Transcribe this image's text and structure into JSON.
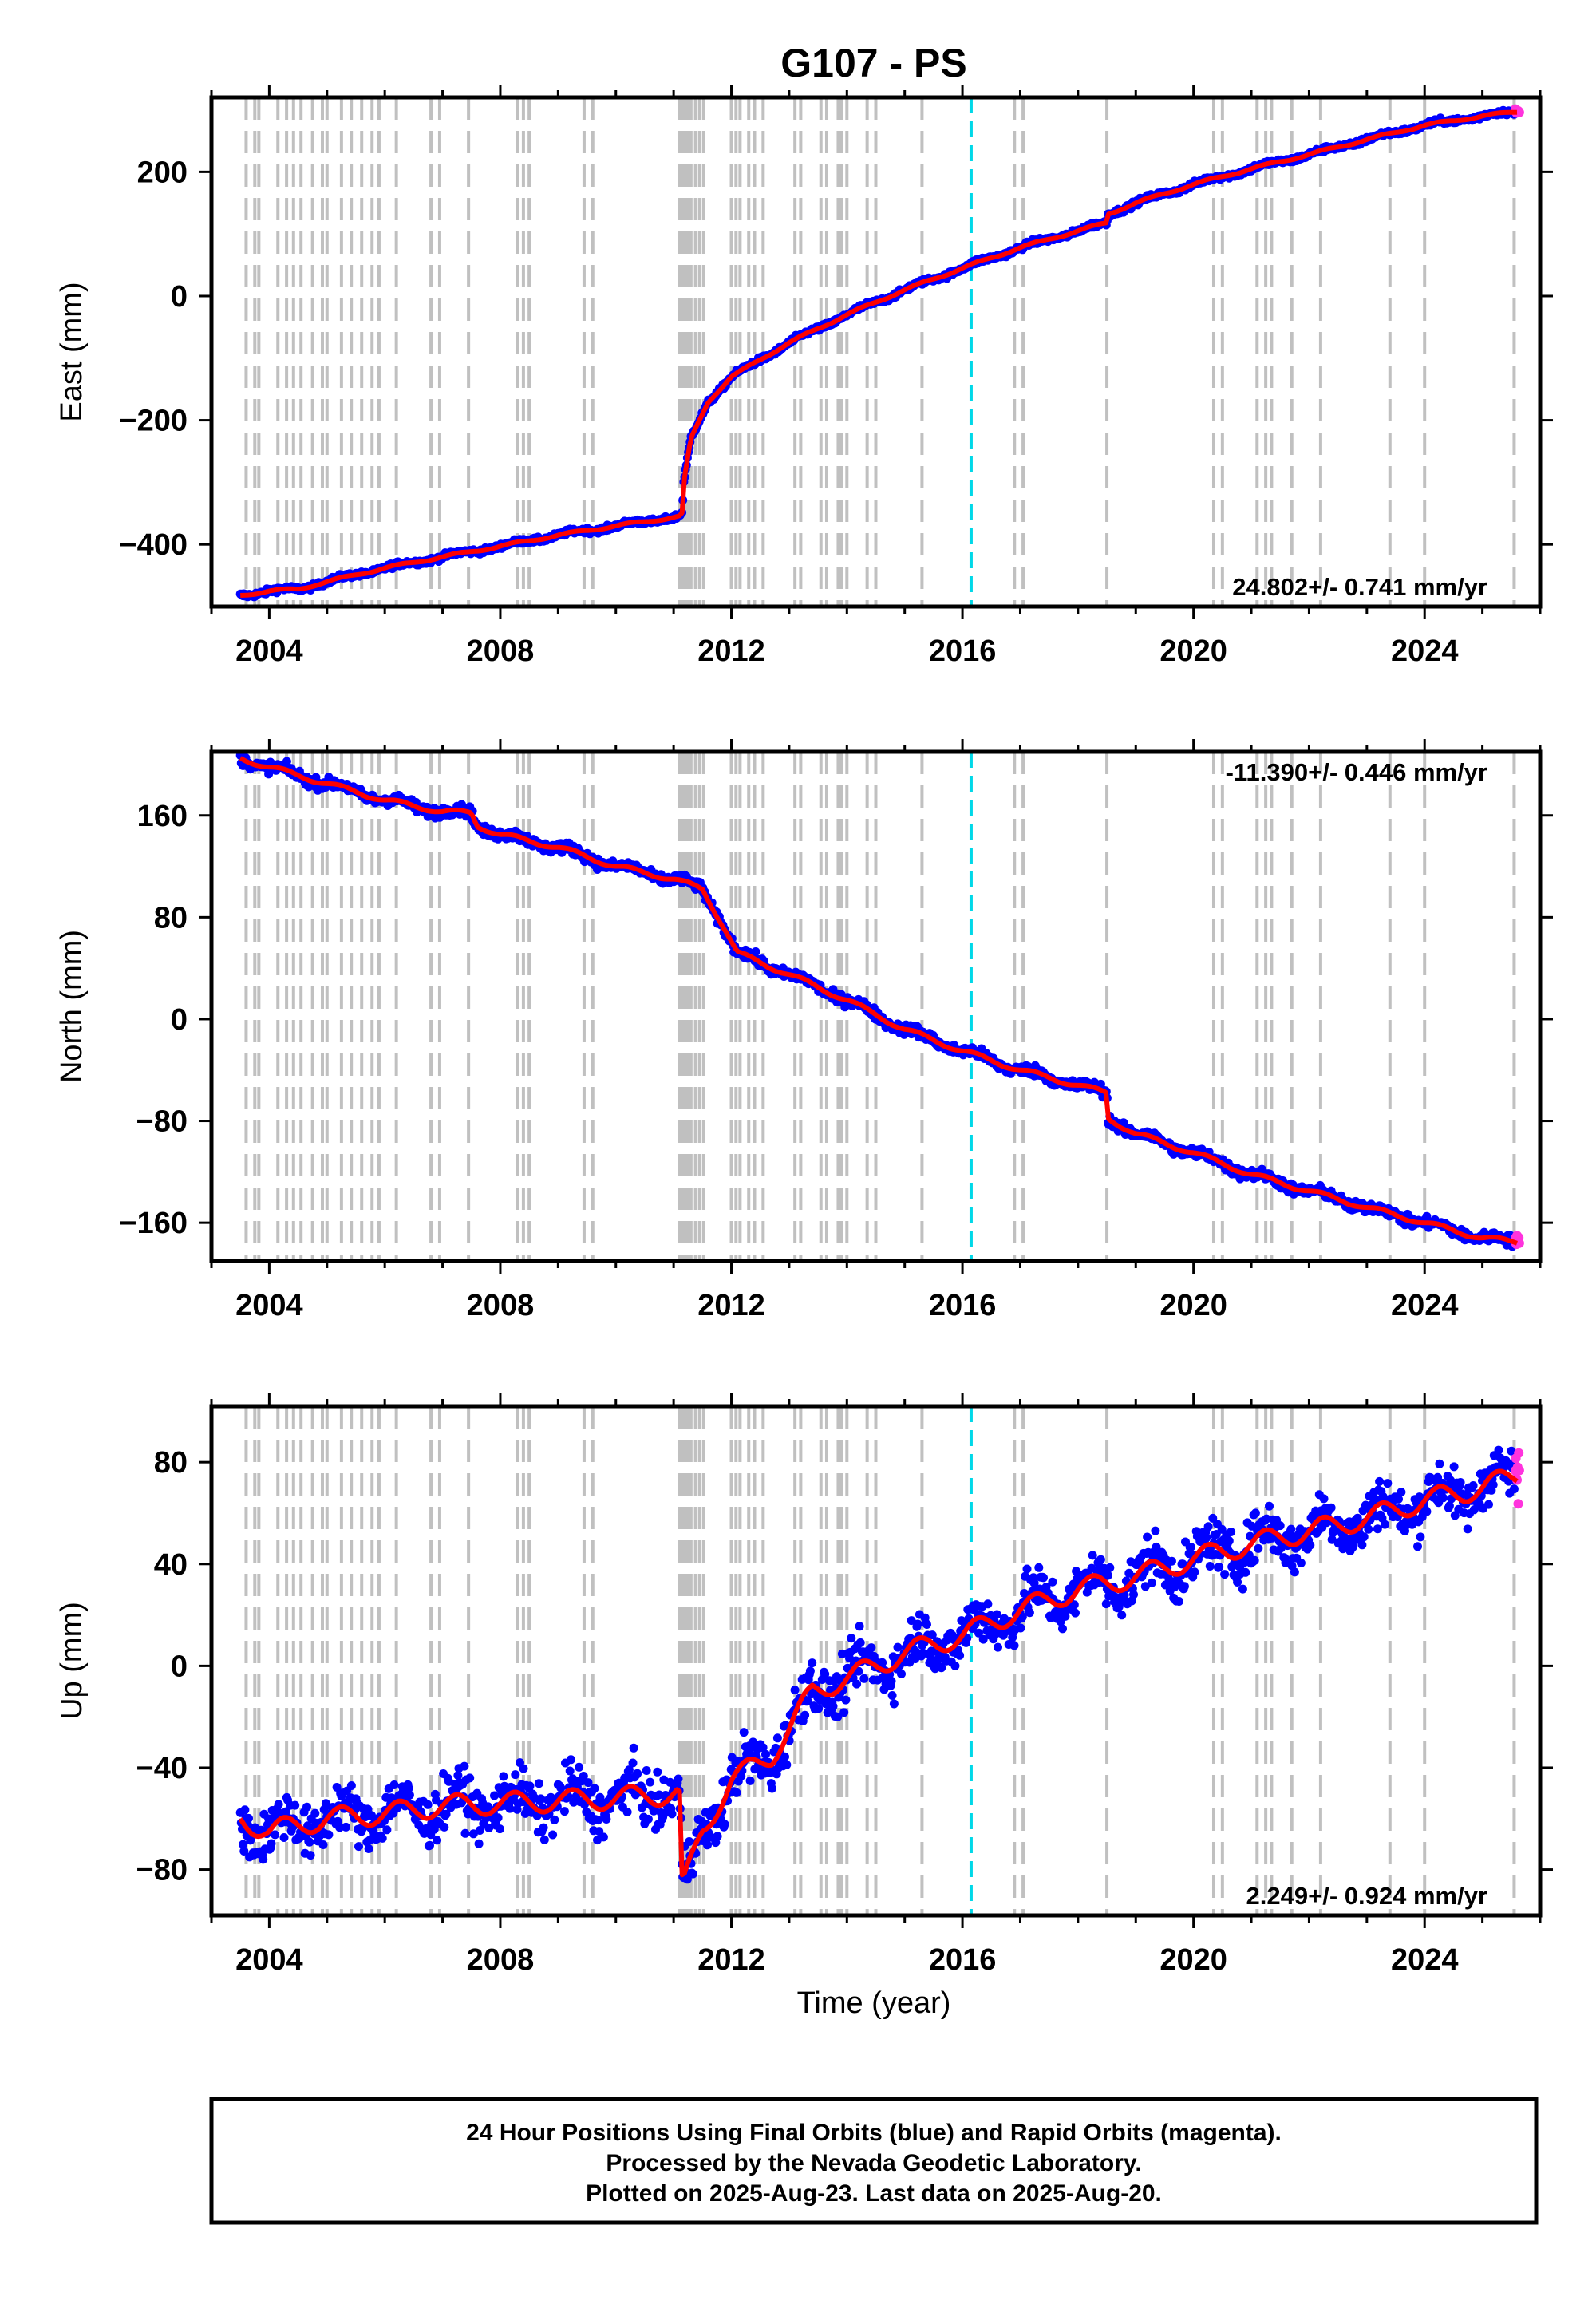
{
  "title": "G107 - PS",
  "chart_data": [
    {
      "type": "scatter",
      "name": "east",
      "ylabel": "East (mm)",
      "xlim": [
        2003.0,
        2026.0
      ],
      "ylim": [
        -500,
        320
      ],
      "x_ticks": [
        2004,
        2008,
        2012,
        2016,
        2020,
        2024
      ],
      "y_ticks": [
        -400,
        -200,
        0,
        200
      ],
      "y_tick_labels": [
        "−400",
        "−200",
        "0",
        "200"
      ],
      "rate_label": "24.802+/- 0.741 mm/yr",
      "rate_position": "bottom-right",
      "trend_points": [
        [
          2003.5,
          -482
        ],
        [
          2004.0,
          -475
        ],
        [
          2004.5,
          -472
        ],
        [
          2005.0,
          -460
        ],
        [
          2006.0,
          -438
        ],
        [
          2007.0,
          -420
        ],
        [
          2008.0,
          -403
        ],
        [
          2009.0,
          -385
        ],
        [
          2010.0,
          -370
        ],
        [
          2011.1,
          -355
        ],
        [
          2011.15,
          -350
        ],
        [
          2011.17,
          -305
        ],
        [
          2011.3,
          -230
        ],
        [
          2011.6,
          -170
        ],
        [
          2012.0,
          -130
        ],
        [
          2013.0,
          -75
        ],
        [
          2014.0,
          -30
        ],
        [
          2015.0,
          10
        ],
        [
          2016.0,
          45
        ],
        [
          2017.0,
          78
        ],
        [
          2018.0,
          105
        ],
        [
          2018.5,
          118
        ],
        [
          2018.52,
          132
        ],
        [
          2019.0,
          150
        ],
        [
          2020.0,
          180
        ],
        [
          2021.0,
          205
        ],
        [
          2022.0,
          228
        ],
        [
          2023.0,
          252
        ],
        [
          2024.0,
          275
        ],
        [
          2025.0,
          290
        ],
        [
          2025.6,
          297
        ]
      ],
      "point_scatter_mm": 3
    },
    {
      "type": "scatter",
      "name": "north",
      "ylabel": "North (mm)",
      "xlim": [
        2003.0,
        2026.0
      ],
      "ylim": [
        -190,
        210
      ],
      "x_ticks": [
        2004,
        2008,
        2012,
        2016,
        2020,
        2024
      ],
      "y_ticks": [
        -160,
        -80,
        0,
        80,
        160
      ],
      "y_tick_labels": [
        "−160",
        "−80",
        "0",
        "80",
        "160"
      ],
      "rate_label": "-11.390+/- 0.446 mm/yr",
      "rate_position": "top-right",
      "trend_points": [
        [
          2003.5,
          205
        ],
        [
          2004.0,
          198
        ],
        [
          2005.0,
          185
        ],
        [
          2006.0,
          172
        ],
        [
          2007.0,
          163
        ],
        [
          2007.5,
          162
        ],
        [
          2007.6,
          152
        ],
        [
          2008.0,
          145
        ],
        [
          2009.0,
          135
        ],
        [
          2010.0,
          120
        ],
        [
          2011.0,
          110
        ],
        [
          2011.5,
          102
        ],
        [
          2011.9,
          70
        ],
        [
          2012.1,
          52
        ],
        [
          2013.0,
          35
        ],
        [
          2014.0,
          15
        ],
        [
          2015.0,
          -8
        ],
        [
          2016.0,
          -25
        ],
        [
          2017.0,
          -40
        ],
        [
          2018.0,
          -52
        ],
        [
          2018.5,
          -58
        ],
        [
          2018.52,
          -78
        ],
        [
          2019.0,
          -90
        ],
        [
          2020.0,
          -105
        ],
        [
          2021.0,
          -122
        ],
        [
          2022.0,
          -135
        ],
        [
          2023.0,
          -148
        ],
        [
          2024.0,
          -160
        ],
        [
          2025.0,
          -172
        ],
        [
          2025.6,
          -175
        ]
      ],
      "point_scatter_mm": 3
    },
    {
      "type": "scatter",
      "name": "up",
      "ylabel": "Up (mm)",
      "xlabel": "Time (year)",
      "xlim": [
        2003.0,
        2026.0
      ],
      "ylim": [
        -98,
        102
      ],
      "x_ticks": [
        2004,
        2008,
        2012,
        2016,
        2020,
        2024
      ],
      "y_ticks": [
        -80,
        -40,
        0,
        40,
        80
      ],
      "y_tick_labels": [
        "−80",
        "−40",
        "0",
        "40",
        "80"
      ],
      "rate_label": "2.249+/- 0.924 mm/yr",
      "rate_position": "bottom-right",
      "trend_points": [
        [
          2003.5,
          -60
        ],
        [
          2004.0,
          -65
        ],
        [
          2005.0,
          -60
        ],
        [
          2006.0,
          -58
        ],
        [
          2007.0,
          -55
        ],
        [
          2008.0,
          -54
        ],
        [
          2009.0,
          -53
        ],
        [
          2010.0,
          -52
        ],
        [
          2011.1,
          -50
        ],
        [
          2011.15,
          -88
        ],
        [
          2011.5,
          -65
        ],
        [
          2012.0,
          -45
        ],
        [
          2012.7,
          -35
        ],
        [
          2013.0,
          -25
        ],
        [
          2013.4,
          -10
        ],
        [
          2014.0,
          -5
        ],
        [
          2015.0,
          5
        ],
        [
          2016.0,
          12
        ],
        [
          2017.0,
          22
        ],
        [
          2018.0,
          30
        ],
        [
          2019.0,
          35
        ],
        [
          2020.0,
          42
        ],
        [
          2021.0,
          48
        ],
        [
          2022.0,
          53
        ],
        [
          2023.0,
          58
        ],
        [
          2024.0,
          65
        ],
        [
          2025.0,
          70
        ],
        [
          2025.6,
          75
        ]
      ],
      "point_scatter_mm": 7
    }
  ],
  "reference_lines": {
    "gray_color": "#c0c0c0",
    "cyan_color": "#00d8e8",
    "gray_years": [
      2003.6,
      2003.75,
      2003.82,
      2004.15,
      2004.3,
      2004.42,
      2004.55,
      2004.75,
      2004.92,
      2005.0,
      2005.25,
      2005.42,
      2005.6,
      2005.78,
      2005.9,
      2006.2,
      2006.8,
      2006.95,
      2007.45,
      2008.3,
      2008.4,
      2008.5,
      2009.45,
      2009.6,
      2011.1,
      2011.15,
      2011.2,
      2011.25,
      2011.3,
      2011.38,
      2011.45,
      2011.52,
      2012.0,
      2012.08,
      2012.15,
      2012.3,
      2012.4,
      2012.55,
      2013.1,
      2013.2,
      2013.55,
      2013.65,
      2013.85,
      2013.9,
      2014.0,
      2014.35,
      2014.5,
      2015.3,
      2016.9,
      2017.05,
      2018.5,
      2020.35,
      2020.5,
      2021.1,
      2021.25,
      2021.35,
      2021.7,
      2022.2,
      2023.4,
      2024.0,
      2025.55
    ],
    "cyan_years": [
      2016.15
    ]
  },
  "series_colors": {
    "final": "#0000ff",
    "rapid": "#ff33dd",
    "trend": "#ff0000"
  },
  "footer": {
    "line1": "24 Hour Positions Using Final Orbits (blue) and Rapid Orbits (magenta).",
    "line2": "Processed by the Nevada Geodetic Laboratory.",
    "line3": "Plotted on 2025-Aug-23. Last data on 2025-Aug-20."
  }
}
